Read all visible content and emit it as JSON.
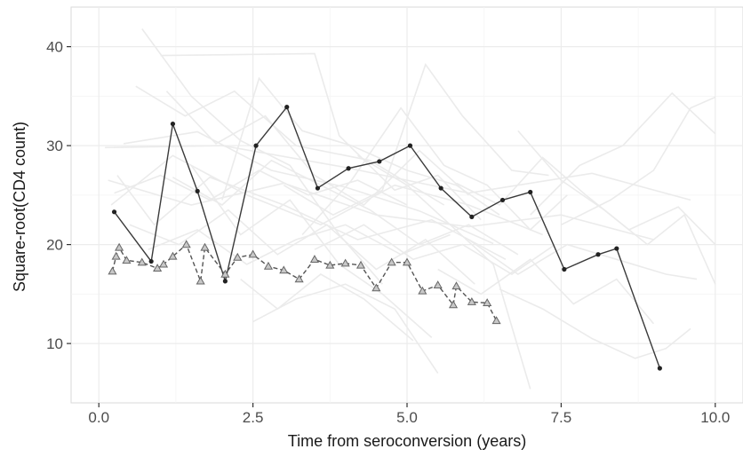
{
  "chart_data": {
    "type": "line",
    "title": "",
    "xlabel": "Time from seroconversion (years)",
    "ylabel": "Square-root(CD4 count)",
    "xlim": [
      -0.45,
      10.45
    ],
    "ylim": [
      4,
      44
    ],
    "x_ticks": [
      0,
      2.5,
      5,
      7.5,
      10
    ],
    "x_tick_labels": [
      "0.0",
      "2.5",
      "5.0",
      "7.5",
      "10.0"
    ],
    "y_ticks": [
      10,
      20,
      30,
      40
    ],
    "y_tick_labels": [
      "10",
      "20",
      "30",
      "40"
    ],
    "grid": true,
    "background_traces_color": "#ebebeb",
    "series": [
      {
        "style": "solid",
        "marker": "dot",
        "color": "#3a3a3a",
        "x": [
          0.25,
          0.85,
          1.2,
          1.6,
          2.05,
          2.55,
          3.05,
          3.55,
          4.05,
          4.55,
          5.05,
          5.55,
          6.05,
          6.55,
          7.0,
          7.55,
          8.1,
          8.4,
          9.1
        ],
        "y": [
          23.3,
          18.3,
          32.2,
          25.4,
          16.3,
          30.0,
          33.9,
          25.7,
          27.7,
          28.4,
          30.0,
          25.7,
          22.8,
          24.5,
          25.3,
          17.5,
          19.0,
          19.6,
          7.5
        ]
      },
      {
        "style": "dashed",
        "marker": "triangle",
        "color": "#555555",
        "x": [
          0.22,
          0.28,
          0.33,
          0.45,
          0.7,
          0.95,
          1.05,
          1.2,
          1.42,
          1.65,
          1.72,
          2.05,
          2.25,
          2.5,
          2.75,
          3.0,
          3.25,
          3.5,
          3.75,
          4.0,
          4.25,
          4.5,
          4.75,
          5.0,
          5.25,
          5.5,
          5.75,
          5.8,
          6.05,
          6.3,
          6.45
        ],
        "y": [
          17.3,
          18.8,
          19.7,
          18.4,
          18.2,
          17.6,
          18.0,
          18.8,
          20.0,
          16.3,
          19.7,
          17.0,
          18.7,
          19.0,
          17.8,
          17.4,
          16.5,
          18.5,
          17.9,
          18.1,
          17.9,
          15.6,
          18.2,
          18.2,
          15.3,
          15.9,
          13.9,
          15.8,
          14.2,
          14.1,
          12.3
        ]
      }
    ],
    "background_traces": [
      [
        [
          0.1,
          29.8
        ],
        [
          2.0,
          30.0
        ],
        [
          4.0,
          27.8
        ],
        [
          6.0,
          25.2
        ],
        [
          8.0,
          27.2
        ],
        [
          9.6,
          24.5
        ]
      ],
      [
        [
          0.15,
          26.5
        ],
        [
          1.5,
          24.0
        ],
        [
          3.0,
          26.2
        ],
        [
          4.5,
          23.0
        ],
        [
          6.0,
          21.8
        ],
        [
          7.5,
          23.0
        ],
        [
          9.0,
          20.5
        ]
      ],
      [
        [
          0.2,
          24.0
        ],
        [
          1.2,
          29.0
        ],
        [
          2.4,
          25.0
        ],
        [
          3.6,
          22.0
        ],
        [
          4.8,
          26.0
        ],
        [
          6.0,
          24.0
        ],
        [
          7.2,
          21.0
        ]
      ],
      [
        [
          0.3,
          27.0
        ],
        [
          0.9,
          22.0
        ],
        [
          1.8,
          26.8
        ],
        [
          3.0,
          24.0
        ],
        [
          4.2,
          20.5
        ],
        [
          5.4,
          22.5
        ],
        [
          6.6,
          18.5
        ]
      ],
      [
        [
          0.4,
          30.2
        ],
        [
          1.6,
          31.4
        ],
        [
          2.8,
          27.5
        ],
        [
          4.0,
          25.8
        ],
        [
          5.2,
          23.4
        ],
        [
          6.4,
          20.1
        ]
      ],
      [
        [
          0.6,
          36.0
        ],
        [
          1.4,
          33.0
        ],
        [
          2.2,
          35.5
        ],
        [
          3.2,
          30.0
        ],
        [
          4.4,
          28.5
        ],
        [
          5.6,
          24.0
        ]
      ],
      [
        [
          0.7,
          41.8
        ],
        [
          1.5,
          35.0
        ],
        [
          2.3,
          30.5
        ],
        [
          3.1,
          28.0
        ],
        [
          3.9,
          21.0
        ],
        [
          4.6,
          16.0
        ]
      ],
      [
        [
          1.0,
          39.1
        ],
        [
          3.5,
          39.3
        ],
        [
          3.9,
          31.0
        ],
        [
          4.8,
          25.5
        ],
        [
          5.5,
          27.0
        ],
        [
          6.2,
          22.5
        ]
      ],
      [
        [
          1.1,
          35.5
        ],
        [
          1.9,
          30.2
        ],
        [
          2.7,
          33.0
        ],
        [
          3.5,
          27.0
        ],
        [
          4.3,
          24.0
        ],
        [
          5.2,
          29.5
        ],
        [
          6.0,
          25.0
        ]
      ],
      [
        [
          0.5,
          22.0
        ],
        [
          1.3,
          20.0
        ],
        [
          2.1,
          23.5
        ],
        [
          2.9,
          19.0
        ],
        [
          3.7,
          22.0
        ],
        [
          4.5,
          17.5
        ],
        [
          5.3,
          20.5
        ],
        [
          6.1,
          16.0
        ]
      ],
      [
        [
          1.5,
          28.0
        ],
        [
          2.3,
          21.0
        ],
        [
          3.1,
          24.5
        ],
        [
          3.9,
          18.0
        ],
        [
          4.6,
          15.0
        ],
        [
          5.4,
          10.6
        ]
      ],
      [
        [
          2.0,
          24.5
        ],
        [
          2.6,
          36.8
        ],
        [
          3.3,
          31.5
        ],
        [
          4.1,
          30.0
        ],
        [
          5.0,
          27.5
        ],
        [
          5.8,
          26.0
        ],
        [
          6.5,
          23.0
        ]
      ],
      [
        [
          2.3,
          16.5
        ],
        [
          2.9,
          13.5
        ],
        [
          3.6,
          17.0
        ],
        [
          4.3,
          14.5
        ],
        [
          5.1,
          10.3
        ]
      ],
      [
        [
          2.5,
          12.2
        ],
        [
          3.2,
          14.5
        ],
        [
          4.0,
          16.0
        ],
        [
          4.8,
          13.5
        ],
        [
          5.5,
          7.0
        ]
      ],
      [
        [
          3.0,
          26.0
        ],
        [
          3.8,
          23.0
        ],
        [
          4.6,
          25.5
        ],
        [
          5.3,
          38.2
        ],
        [
          5.9,
          33.0
        ],
        [
          6.7,
          27.5
        ],
        [
          7.3,
          27.0
        ]
      ],
      [
        [
          3.3,
          21.0
        ],
        [
          4.1,
          26.5
        ],
        [
          4.9,
          33.8
        ],
        [
          5.6,
          28.0
        ],
        [
          6.3,
          26.0
        ],
        [
          7.0,
          21.5
        ],
        [
          7.6,
          25.0
        ]
      ],
      [
        [
          4.2,
          29.0
        ],
        [
          5.0,
          26.0
        ],
        [
          5.7,
          22.0
        ],
        [
          6.4,
          18.0
        ],
        [
          7.0,
          5.4
        ]
      ],
      [
        [
          5.8,
          26.2
        ],
        [
          6.5,
          24.0
        ],
        [
          7.2,
          28.8
        ],
        [
          7.9,
          25.0
        ],
        [
          8.6,
          21.5
        ],
        [
          9.4,
          23.8
        ],
        [
          10.0,
          20.0
        ]
      ],
      [
        [
          6.0,
          20.5
        ],
        [
          6.8,
          17.0
        ],
        [
          7.6,
          20.0
        ],
        [
          8.4,
          18.5
        ],
        [
          9.2,
          17.0
        ],
        [
          9.7,
          16.5
        ]
      ],
      [
        [
          6.5,
          15.5
        ],
        [
          7.2,
          13.5
        ],
        [
          8.0,
          10.5
        ],
        [
          8.7,
          8.5
        ],
        [
          9.2,
          9.5
        ],
        [
          9.6,
          11.5
        ]
      ],
      [
        [
          7.0,
          23.0
        ],
        [
          7.8,
          28.0
        ],
        [
          8.5,
          30.0
        ],
        [
          9.3,
          35.3
        ],
        [
          10.0,
          31.2
        ]
      ],
      [
        [
          6.8,
          31.5
        ],
        [
          7.5,
          26.5
        ],
        [
          8.2,
          23.5
        ],
        [
          8.9,
          20.0
        ],
        [
          9.5,
          23.0
        ],
        [
          10.0,
          16.0
        ]
      ],
      [
        [
          5.5,
          17.5
        ],
        [
          6.2,
          15.0
        ],
        [
          7.0,
          18.5
        ],
        [
          7.7,
          14.0
        ],
        [
          8.4,
          16.5
        ],
        [
          9.0,
          12.0
        ]
      ],
      [
        [
          7.5,
          22.0
        ],
        [
          8.3,
          24.5
        ],
        [
          9.0,
          27.5
        ],
        [
          9.6,
          33.8
        ],
        [
          10.0,
          34.9
        ]
      ],
      [
        [
          0.8,
          19.5
        ],
        [
          1.6,
          21.5
        ],
        [
          2.4,
          18.0
        ],
        [
          3.2,
          20.5
        ],
        [
          4.0,
          22.0
        ],
        [
          4.9,
          19.0
        ],
        [
          5.7,
          21.0
        ]
      ],
      [
        [
          1.2,
          26.8
        ],
        [
          2.0,
          24.0
        ],
        [
          2.8,
          28.5
        ],
        [
          3.6,
          26.0
        ],
        [
          4.4,
          23.5
        ],
        [
          5.2,
          20.0
        ],
        [
          6.0,
          22.0
        ],
        [
          6.8,
          19.0
        ]
      ],
      [
        [
          3.5,
          19.5
        ],
        [
          4.3,
          22.0
        ],
        [
          5.1,
          18.5
        ],
        [
          5.9,
          20.0
        ],
        [
          6.7,
          17.0
        ],
        [
          7.4,
          20.0
        ]
      ],
      [
        [
          0.25,
          25.2
        ],
        [
          1.0,
          27.0
        ],
        [
          1.8,
          24.5
        ],
        [
          2.6,
          27.5
        ],
        [
          3.4,
          25.0
        ],
        [
          4.2,
          26.5
        ],
        [
          5.0,
          24.0
        ]
      ]
    ]
  }
}
